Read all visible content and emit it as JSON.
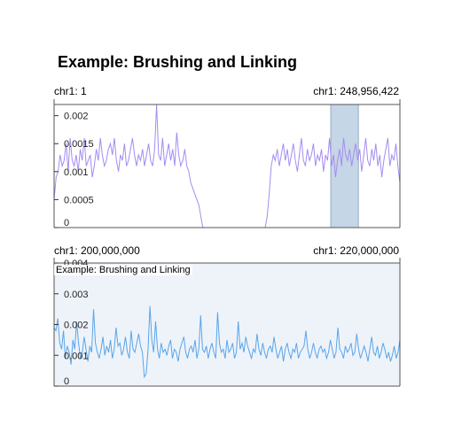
{
  "title": "Example: Brushing and Linking",
  "colors": {
    "overview_line": "#a58cf0",
    "detail_line": "#5aa5e8",
    "brush_fill": "#c5d6e6",
    "brush_stroke": "#7f9fb9",
    "detail_bg": "#eef3fa",
    "frame": "#555555"
  },
  "chart_data": [
    {
      "type": "line",
      "name": "overview",
      "x_start_label": "chr1: 1",
      "x_end_label": "chr1: 248,956,422",
      "y_ticks": [
        "0.002",
        "0.0015",
        "0.001",
        "0.0005",
        "0"
      ],
      "y_tick_values": [
        0.002,
        0.0015,
        0.001,
        0.0005,
        0
      ],
      "ylim": [
        0,
        0.0022
      ],
      "brush_range_fraction": [
        0.8,
        0.88
      ],
      "values": [
        0.0005,
        0.0009,
        0.001,
        0.0013,
        0.0011,
        0.0012,
        0.0015,
        0.001,
        0.0016,
        0.0012,
        0.0011,
        0.0013,
        0.001,
        0.0014,
        0.0012,
        0.0016,
        0.0011,
        0.0012,
        0.0013,
        0.0009,
        0.0011,
        0.0014,
        0.0012,
        0.0016,
        0.0013,
        0.0011,
        0.0012,
        0.0014,
        0.0015,
        0.0013,
        0.0016,
        0.0012,
        0.001,
        0.0013,
        0.0012,
        0.0015,
        0.0011,
        0.0012,
        0.0014,
        0.0016,
        0.0013,
        0.0011,
        0.0013,
        0.0012,
        0.0014,
        0.0011,
        0.0013,
        0.0015,
        0.0012,
        0.0011,
        0.0014,
        0.0023,
        0.0013,
        0.0012,
        0.0016,
        0.0011,
        0.0013,
        0.0015,
        0.0012,
        0.0014,
        0.0011,
        0.0017,
        0.0013,
        0.0011,
        0.0012,
        0.0014,
        0.0011,
        0.001,
        0.0008,
        0.0007,
        0.0006,
        0.0005,
        0.0004,
        0.0002,
        0.0,
        0.0,
        0.0,
        0.0,
        0.0,
        0.0,
        0.0,
        0.0,
        0.0,
        0.0,
        0.0,
        0.0,
        0.0,
        0.0,
        0.0,
        0.0,
        0.0,
        0.0,
        0.0,
        0.0,
        0.0,
        0.0,
        0.0,
        0.0,
        0.0,
        0.0,
        0.0,
        0.0,
        0.0,
        0.0,
        0.0,
        0.0,
        0.0002,
        0.0006,
        0.0011,
        0.0013,
        0.0012,
        0.0014,
        0.0011,
        0.0013,
        0.0015,
        0.0012,
        0.0014,
        0.0011,
        0.0013,
        0.0015,
        0.0012,
        0.001,
        0.0013,
        0.0016,
        0.0012,
        0.0011,
        0.0014,
        0.0012,
        0.0013,
        0.0015,
        0.0011,
        0.0013,
        0.0012,
        0.0014,
        0.001,
        0.0013,
        0.0012,
        0.0016,
        0.0011,
        0.0013,
        0.0009,
        0.0012,
        0.0014,
        0.0011,
        0.0016,
        0.0013,
        0.0012,
        0.0014,
        0.0011,
        0.0013,
        0.0015,
        0.0012,
        0.0014,
        0.001,
        0.0013,
        0.0016,
        0.0012,
        0.0011,
        0.0014,
        0.0012,
        0.0015,
        0.0011,
        0.0013,
        0.0009,
        0.0012,
        0.0014,
        0.0016,
        0.0011,
        0.0013,
        0.0012,
        0.0015,
        0.0011,
        0.0008
      ]
    },
    {
      "type": "line",
      "name": "detail",
      "track_title": "Example: Brushing and Linking",
      "x_start_label": "chr1: 200,000,000",
      "x_end_label": "chr1: 220,000,000",
      "y_ticks": [
        "0.004",
        "0.003",
        "0.002",
        "0.001",
        "0"
      ],
      "y_tick_values": [
        0.004,
        0.003,
        0.002,
        0.001,
        0
      ],
      "ylim": [
        0,
        0.004
      ],
      "values": [
        0.0019,
        0.0018,
        0.0022,
        0.0014,
        0.0012,
        0.0018,
        0.0009,
        0.0013,
        0.0011,
        0.0007,
        0.0015,
        0.0012,
        0.0021,
        0.0014,
        0.0009,
        0.0011,
        0.0016,
        0.0012,
        0.0008,
        0.0013,
        0.0011,
        0.0025,
        0.0014,
        0.0011,
        0.0009,
        0.0012,
        0.0016,
        0.001,
        0.0013,
        0.0011,
        0.0015,
        0.0009,
        0.0012,
        0.0019,
        0.0013,
        0.0014,
        0.001,
        0.0012,
        0.0016,
        0.0011,
        0.0009,
        0.0018,
        0.0012,
        0.0011,
        0.0014,
        0.0017,
        0.0013,
        0.0011,
        0.0003,
        0.0004,
        0.0012,
        0.0026,
        0.0015,
        0.0011,
        0.0021,
        0.0012,
        0.0009,
        0.0014,
        0.0011,
        0.0012,
        0.001,
        0.0013,
        0.0015,
        0.0009,
        0.0012,
        0.0011,
        0.0008,
        0.0012,
        0.0014,
        0.0016,
        0.0011,
        0.0009,
        0.0012,
        0.0013,
        0.0011,
        0.0015,
        0.0009,
        0.0012,
        0.0023,
        0.0012,
        0.0011,
        0.0013,
        0.0009,
        0.0012,
        0.0014,
        0.0011,
        0.0009,
        0.0024,
        0.0014,
        0.0011,
        0.0012,
        0.0009,
        0.0015,
        0.0011,
        0.0012,
        0.0014,
        0.0009,
        0.0011,
        0.0021,
        0.0012,
        0.0014,
        0.0011,
        0.0016,
        0.0013,
        0.0011,
        0.0009,
        0.0012,
        0.0011,
        0.0017,
        0.0012,
        0.001,
        0.0014,
        0.0011,
        0.0009,
        0.0012,
        0.0013,
        0.0011,
        0.0016,
        0.0012,
        0.0009,
        0.0011,
        0.0013,
        0.0008,
        0.0012,
        0.0014,
        0.0011,
        0.0009,
        0.0012,
        0.0011,
        0.0014,
        0.0009,
        0.0011,
        0.0012,
        0.0013,
        0.0018,
        0.0012,
        0.0009,
        0.0011,
        0.0014,
        0.0011,
        0.0009,
        0.0012,
        0.0013,
        0.0011,
        0.0012,
        0.0009,
        0.0011,
        0.0015,
        0.0012,
        0.0009,
        0.0011,
        0.0019,
        0.0012,
        0.0011,
        0.0009,
        0.0013,
        0.0011,
        0.0012,
        0.0014,
        0.001,
        0.0011,
        0.0017,
        0.0012,
        0.0009,
        0.0011,
        0.0013,
        0.0011,
        0.0008,
        0.0012,
        0.0016,
        0.0011,
        0.001,
        0.0013,
        0.0009,
        0.0011,
        0.0014,
        0.0012,
        0.0009,
        0.0011,
        0.0008,
        0.001,
        0.0013,
        0.0009,
        0.0011,
        0.0015
      ]
    }
  ]
}
